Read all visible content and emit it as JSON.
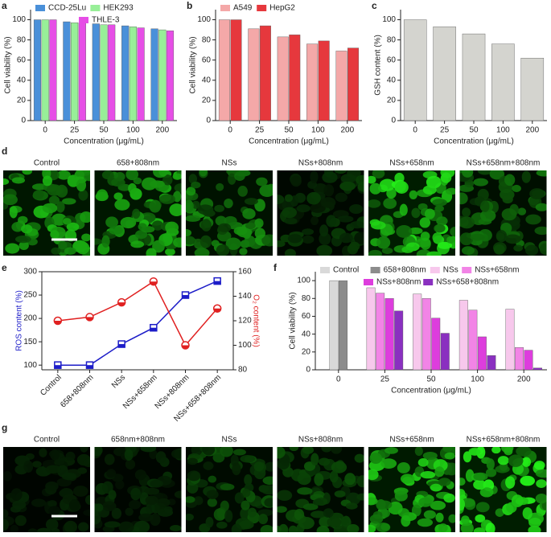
{
  "chart_data": [
    {
      "type": "bar",
      "panel": "a",
      "categories": [
        "0",
        "25",
        "50",
        "100",
        "200"
      ],
      "series": [
        {
          "name": "CCD-25Lu",
          "color": "#4a90d9",
          "values": [
            100,
            98,
            96,
            94,
            91
          ]
        },
        {
          "name": "HEK293",
          "color": "#98ef98",
          "values": [
            100,
            97,
            95,
            93,
            90
          ]
        },
        {
          "name": "THLE-3",
          "color": "#e64ee6",
          "values": [
            100,
            97,
            95,
            92,
            89
          ]
        }
      ],
      "ylim": [
        0,
        110
      ],
      "yticks": [
        0,
        20,
        40,
        60,
        80,
        100
      ],
      "ylabel": "Cell viability (%)",
      "xlabel": "Concentration (μg/mL)"
    },
    {
      "type": "bar",
      "panel": "b",
      "categories": [
        "0",
        "25",
        "50",
        "100",
        "200"
      ],
      "series": [
        {
          "name": "A549",
          "color": "#f4a8a8",
          "values": [
            100,
            91,
            83,
            76,
            69
          ]
        },
        {
          "name": "HepG2",
          "color": "#e6383d",
          "values": [
            100,
            94,
            85,
            79,
            72
          ]
        }
      ],
      "ylim": [
        0,
        110
      ],
      "yticks": [
        0,
        20,
        40,
        60,
        80,
        100
      ],
      "ylabel": "Cell viability (%)",
      "xlabel": "Concentration (μg/mL)"
    },
    {
      "type": "bar",
      "panel": "c",
      "categories": [
        "0",
        "25",
        "50",
        "100",
        "200"
      ],
      "series": [
        {
          "color": "#d4d4cf",
          "values": [
            100,
            93,
            86,
            76,
            62
          ]
        }
      ],
      "ylim": [
        0,
        110
      ],
      "yticks": [
        0,
        20,
        40,
        60,
        80,
        100
      ],
      "ylabel": "GSH content (%)",
      "xlabel": "Concentration (μg/mL)"
    },
    {
      "type": "line",
      "panel": "e",
      "categories": [
        "Control",
        "658+808nm",
        "NSs",
        "NSs+658nm",
        "NSs+808nm",
        "NSs+658+808nm"
      ],
      "series": [
        {
          "color": "#1c1cc8",
          "marker": "square",
          "values": [
            100,
            100,
            145,
            180,
            250,
            280
          ]
        },
        {
          "color": "#e02020",
          "marker": "circle",
          "axis": "y2",
          "values": [
            120,
            123,
            135,
            152,
            100,
            130
          ]
        }
      ],
      "ylim": [
        90,
        300
      ],
      "yticks": [
        100,
        150,
        200,
        250,
        300
      ],
      "y2lim": [
        80,
        160
      ],
      "y2ticks": [
        80,
        100,
        120,
        140,
        160
      ],
      "ylabel": "ROS content (%)",
      "y2label": "O₂ content (%)",
      "ylabel_color": "#1c1cc8",
      "y2label_color": "#e02020",
      "xtick_rotation": 45
    },
    {
      "type": "bar",
      "panel": "f",
      "categories": [
        "0",
        "25",
        "50",
        "100",
        "200"
      ],
      "series": [
        {
          "name": "Control",
          "color": "#d9d9d9",
          "values": [
            100,
            null,
            null,
            null,
            null
          ]
        },
        {
          "name": "658+808nm",
          "color": "#8c8c8c",
          "values": [
            100,
            null,
            null,
            null,
            null
          ]
        },
        {
          "name": "NSs",
          "color": "#f7c8ec",
          "values": [
            null,
            92,
            85,
            78,
            68
          ]
        },
        {
          "name": "NSs+658nm",
          "color": "#f284e6",
          "values": [
            null,
            86,
            80,
            67,
            25
          ]
        },
        {
          "name": "NSs+808nm",
          "color": "#dd3ddd",
          "values": [
            null,
            80,
            58,
            37,
            22
          ]
        },
        {
          "name": "NSs+658+808nm",
          "color": "#8a30c0",
          "values": [
            null,
            66,
            41,
            16,
            2
          ]
        }
      ],
      "ylim": [
        0,
        110
      ],
      "yticks": [
        0,
        20,
        40,
        60,
        80,
        100
      ],
      "ylabel": "Cell viability (%)",
      "xlabel": "Concentration (μg/mL)"
    }
  ],
  "image_panels": {
    "d": {
      "panel": "d",
      "labels": [
        "Control",
        "658+808nm",
        "NSs",
        "NSs+808nm",
        "NSs+658nm",
        "NSs+658nm+808nm"
      ]
    },
    "g": {
      "panel": "g",
      "labels": [
        "Control",
        "658nm+808nm",
        "NSs",
        "NSs+808nm",
        "NSs+658nm",
        "NSs+658nm+808nm"
      ]
    }
  }
}
